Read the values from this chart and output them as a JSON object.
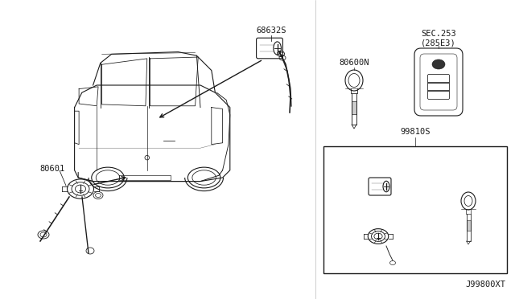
{
  "bg_color": "#ffffff",
  "line_color": "#1a1a1a",
  "figsize": [
    6.4,
    3.72
  ],
  "dpi": 100,
  "labels": {
    "top_lock": "68632S",
    "door_lock": "80601",
    "key_blank": "80600N",
    "sec": "SEC.253\n(285E3)",
    "key_set": "99810S",
    "diagram_id": "J99800XT"
  },
  "car": {
    "body_outline_x": [
      95,
      100,
      112,
      135,
      165,
      210,
      250,
      285,
      310,
      330,
      345,
      350,
      348,
      340,
      330,
      318,
      300,
      270,
      230,
      190,
      155,
      130,
      110,
      95,
      95
    ],
    "body_outline_y": [
      185,
      195,
      210,
      225,
      232,
      235,
      233,
      228,
      218,
      205,
      190,
      175,
      162,
      150,
      140,
      135,
      132,
      128,
      125,
      128,
      132,
      145,
      165,
      178,
      185
    ]
  }
}
